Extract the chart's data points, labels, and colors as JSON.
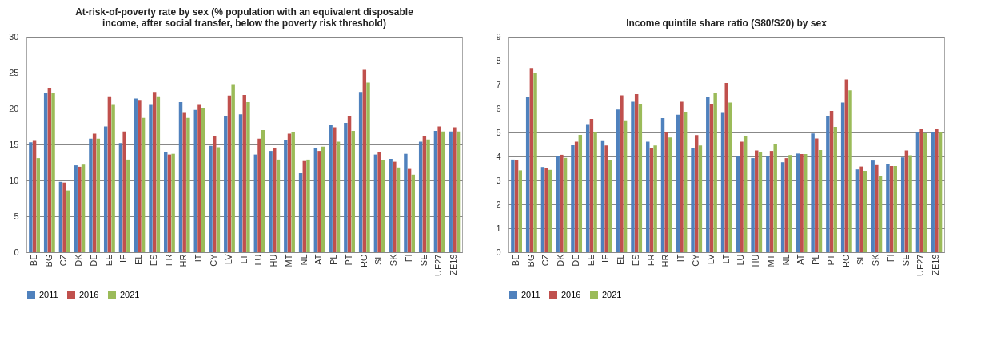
{
  "chart_data": [
    {
      "type": "bar",
      "title": "At-risk-of-poverty rate by sex (% population with an equivalent disposable income, after social transfer, below the poverty risk threshold)",
      "categories": [
        "BE",
        "BG",
        "CZ",
        "DK",
        "DE",
        "EE",
        "IE",
        "EL",
        "ES",
        "FR",
        "HR",
        "IT",
        "CY",
        "LV",
        "LT",
        "LU",
        "HU",
        "MT",
        "NL",
        "AT",
        "PL",
        "PT",
        "RO",
        "SL",
        "SK",
        "FI",
        "SE",
        "UE27",
        "ZE19"
      ],
      "series": [
        {
          "name": "2011",
          "color": "#4f81bd",
          "values": [
            15.3,
            22.2,
            9.8,
            12.1,
            15.8,
            17.5,
            15.2,
            21.4,
            20.6,
            14.0,
            20.9,
            19.8,
            14.8,
            19.0,
            19.2,
            13.6,
            14.1,
            15.6,
            11.0,
            14.5,
            17.7,
            18.0,
            22.3,
            13.6,
            13.0,
            13.7,
            15.4,
            16.9,
            16.8
          ]
        },
        {
          "name": "2016",
          "color": "#c0504d",
          "values": [
            15.5,
            22.9,
            9.7,
            11.9,
            16.5,
            21.7,
            16.8,
            21.2,
            22.3,
            13.6,
            19.5,
            20.6,
            16.1,
            21.8,
            21.9,
            15.8,
            14.5,
            16.5,
            12.7,
            14.1,
            17.4,
            19.0,
            25.4,
            13.9,
            12.6,
            11.6,
            16.2,
            17.5,
            17.4
          ]
        },
        {
          "name": "2021",
          "color": "#9bbb59",
          "values": [
            13.1,
            22.1,
            8.6,
            12.2,
            15.8,
            20.6,
            12.9,
            18.7,
            21.7,
            13.7,
            18.7,
            20.1,
            14.6,
            23.4,
            20.9,
            17.0,
            12.9,
            16.7,
            12.9,
            14.7,
            15.4,
            16.9,
            23.6,
            12.8,
            11.8,
            10.8,
            15.7,
            16.8,
            16.8
          ]
        }
      ],
      "ylim": [
        0,
        30
      ],
      "yticks": [
        0,
        5,
        10,
        15,
        20,
        25,
        30
      ],
      "grid": "y",
      "legend": "bottom"
    },
    {
      "type": "bar",
      "title": "Income quintile share ratio (S80/S20) by sex",
      "categories": [
        "BE",
        "BG",
        "CZ",
        "DK",
        "DE",
        "EE",
        "IE",
        "EL",
        "ES",
        "FR",
        "HR",
        "IT",
        "CY",
        "LV",
        "LT",
        "LU",
        "HU",
        "MT",
        "NL",
        "AT",
        "PL",
        "PT",
        "RO",
        "SL",
        "SK",
        "FI",
        "SE",
        "UE27",
        "ZE19"
      ],
      "series": [
        {
          "name": "2011",
          "color": "#4f81bd",
          "values": [
            3.87,
            6.47,
            3.56,
            4.0,
            4.47,
            5.35,
            4.64,
            5.96,
            6.28,
            4.62,
            5.6,
            5.74,
            4.35,
            6.5,
            5.85,
            4.0,
            3.93,
            4.0,
            3.76,
            4.12,
            4.96,
            5.7,
            6.25,
            3.46,
            3.83,
            3.7,
            3.96,
            5.0,
            5.0
          ]
        },
        {
          "name": "2016",
          "color": "#c0504d",
          "values": [
            3.85,
            7.69,
            3.51,
            4.07,
            4.62,
            5.57,
            4.46,
            6.55,
            6.6,
            4.33,
            5.0,
            6.28,
            4.89,
            6.2,
            7.07,
            4.62,
            4.25,
            4.23,
            3.93,
            4.1,
            4.75,
            5.9,
            7.22,
            3.58,
            3.64,
            3.6,
            4.25,
            5.16,
            5.16
          ]
        },
        {
          "name": "2021",
          "color": "#9bbb59",
          "values": [
            3.42,
            7.47,
            3.44,
            3.94,
            4.9,
            5.03,
            3.85,
            5.51,
            6.2,
            4.46,
            4.79,
            5.87,
            4.46,
            6.63,
            6.25,
            4.87,
            4.17,
            4.52,
            4.06,
            4.1,
            4.27,
            5.23,
            6.76,
            3.4,
            3.18,
            3.6,
            4.05,
            4.97,
            5.0
          ]
        }
      ],
      "ylim": [
        0,
        9
      ],
      "yticks": [
        0,
        1,
        2,
        3,
        4,
        5,
        6,
        7,
        8,
        9
      ],
      "grid": "y",
      "legend": "bottom"
    }
  ]
}
